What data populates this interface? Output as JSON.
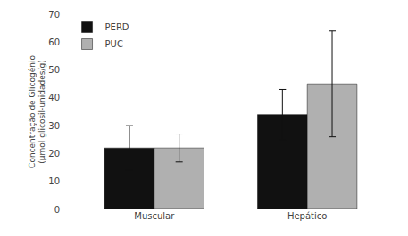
{
  "chart_data": {
    "type": "bar",
    "ylabel": "Concentração de Glicogênio\n(µmol glicosil-unidades/g)",
    "categories": [
      "Muscular",
      "Hepático"
    ],
    "series": [
      {
        "name": "PERD",
        "color": "#111111",
        "values": [
          22,
          34
        ],
        "errors": [
          8,
          9
        ]
      },
      {
        "name": "PUC",
        "color": "#b0b0b0",
        "values": [
          22,
          45
        ],
        "errors": [
          5,
          19
        ]
      }
    ],
    "ylim": [
      0,
      70
    ],
    "yticks": [
      0,
      10,
      20,
      30,
      40,
      50,
      60,
      70
    ],
    "grid": false,
    "legend": "upper left"
  }
}
